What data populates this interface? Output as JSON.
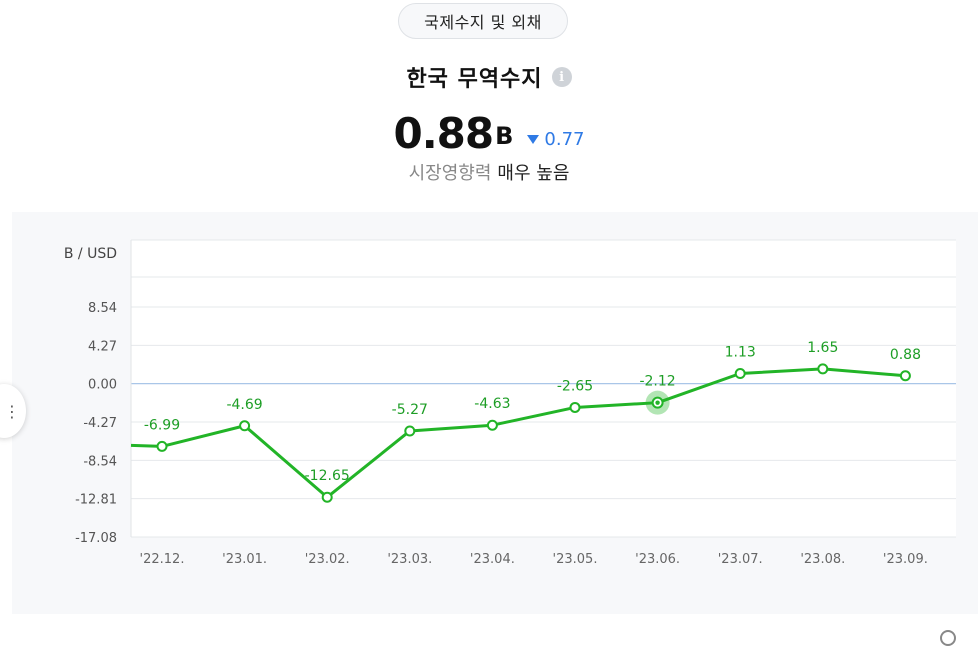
{
  "category": {
    "label": "국제수지 및 외채"
  },
  "header": {
    "title": "한국 무역수지",
    "info_icon": "info-icon",
    "value": "0.88",
    "unit": "B",
    "change": "0.77",
    "change_direction": "down",
    "impact_label": "시장영향력",
    "impact_value": "매우 높음"
  },
  "colors": {
    "line": "#22b427",
    "label": "#1e9e26",
    "change": "#2f7ae5",
    "zero_line": "#a9c6e8",
    "grid": "#e6e8eb"
  },
  "chart_data": {
    "type": "line",
    "ylabel": "B / USD",
    "categories": [
      "'22.12.",
      "'23.01.",
      "'23.02.",
      "'23.03.",
      "'23.04.",
      "'23.05.",
      "'23.06.",
      "'23.07.",
      "'23.08.",
      "'23.09."
    ],
    "series": [
      {
        "values": [
          -6.99,
          -4.69,
          -12.65,
          -5.27,
          -4.63,
          -2.65,
          -2.12,
          1.13,
          1.65,
          0.88
        ]
      }
    ],
    "data_labels": [
      "-6.99",
      "-4.69",
      "-12.65",
      "-5.27",
      "-4.63",
      "-2.65",
      "-2.12",
      "1.13",
      "1.65",
      "0.88"
    ],
    "yticks": [
      8.54,
      4.27,
      0.0,
      -4.27,
      -8.54,
      -12.81,
      -17.08
    ],
    "ytick_labels": [
      "8.54",
      "4.27",
      "0.00",
      "-4.27",
      "-8.54",
      "-12.81",
      "-17.08"
    ],
    "ylim": [
      -17.08,
      16.0
    ],
    "highlight_index": 6,
    "line_enters_from_left": true,
    "grid": true
  }
}
